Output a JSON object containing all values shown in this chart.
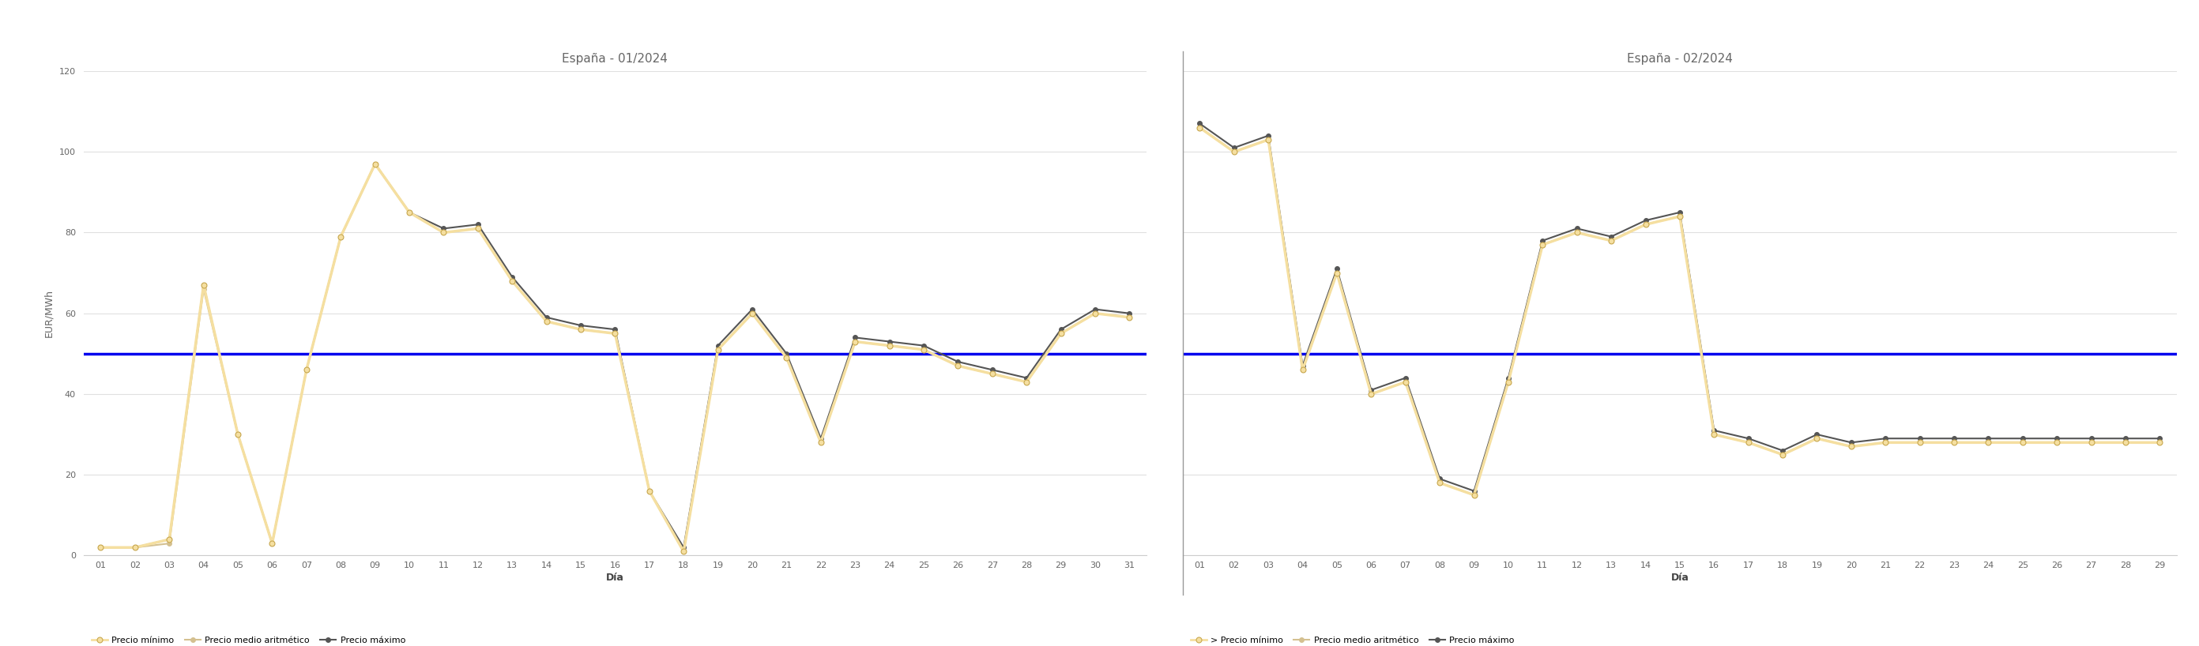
{
  "title1": "España - 01/2024",
  "title2": "España - 02/2024",
  "ylabel": "EUR/MWh",
  "xlabel": "Día",
  "ppa_value": 50,
  "ppa_color": "#0000ee",
  "ylim": [
    0,
    120
  ],
  "yticks": [
    0,
    20,
    40,
    60,
    80,
    100,
    120
  ],
  "days_jan": [
    "01",
    "02",
    "03",
    "04",
    "05",
    "06",
    "07",
    "08",
    "09",
    "10",
    "11",
    "12",
    "13",
    "14",
    "15",
    "16",
    "17",
    "18",
    "19",
    "20",
    "21",
    "22",
    "23",
    "24",
    "25",
    "26",
    "27",
    "28",
    "29",
    "30",
    "31"
  ],
  "days_feb": [
    "01",
    "02",
    "03",
    "04",
    "05",
    "06",
    "07",
    "08",
    "09",
    "10",
    "11",
    "12",
    "13",
    "14",
    "15",
    "16",
    "17",
    "18",
    "19",
    "20",
    "21",
    "22",
    "23",
    "24",
    "25",
    "26",
    "27",
    "28",
    "29"
  ],
  "jan_min": [
    2,
    2,
    4,
    67,
    30,
    3,
    46,
    79,
    97,
    85,
    80,
    81,
    68,
    58,
    56,
    55,
    16,
    1,
    51,
    60,
    49,
    28,
    53,
    52,
    51,
    47,
    45,
    43,
    55,
    60,
    59
  ],
  "jan_avg": [
    2,
    2,
    3,
    66,
    30,
    3,
    46,
    79,
    97,
    85,
    80,
    81,
    68,
    58,
    56,
    55,
    16,
    1,
    51,
    60,
    49,
    28,
    53,
    52,
    51,
    47,
    45,
    43,
    55,
    60,
    59
  ],
  "jan_max": [
    2,
    2,
    4,
    67,
    30,
    3,
    46,
    79,
    97,
    85,
    81,
    82,
    69,
    59,
    57,
    56,
    16,
    2,
    52,
    61,
    50,
    29,
    54,
    53,
    52,
    48,
    46,
    44,
    56,
    61,
    60
  ],
  "feb_min": [
    106,
    100,
    103,
    46,
    70,
    40,
    43,
    18,
    15,
    43,
    77,
    80,
    78,
    82,
    84,
    30,
    28,
    25,
    29,
    27,
    28,
    28,
    28,
    28,
    28,
    28,
    28,
    28,
    28
  ],
  "feb_avg": [
    106,
    100,
    103,
    46,
    70,
    40,
    43,
    18,
    15,
    43,
    77,
    80,
    78,
    82,
    84,
    30,
    28,
    25,
    29,
    27,
    28,
    28,
    28,
    28,
    28,
    28,
    28,
    28,
    28
  ],
  "feb_max": [
    107,
    101,
    104,
    47,
    71,
    41,
    44,
    19,
    16,
    44,
    78,
    81,
    79,
    83,
    85,
    31,
    29,
    26,
    30,
    28,
    29,
    29,
    29,
    29,
    29,
    29,
    29,
    29,
    29
  ],
  "color_min": "#f5dfa0",
  "color_min_edge": "#c8a850",
  "color_avg": "#d4c090",
  "color_max": "#555555",
  "linewidth_min": 2.5,
  "linewidth_avg": 1.5,
  "linewidth_max": 1.5,
  "markersize_min": 5,
  "markersize_avg": 4,
  "markersize_max": 4,
  "background_color": "#ffffff",
  "grid_color": "#e0e0e0",
  "title_fontsize": 11,
  "label_fontsize": 9,
  "tick_fontsize": 8,
  "legend_label_min": "Precio mínimo",
  "legend_label_avg": "Precio medio aritmético",
  "legend_label_max": "Precio máximo",
  "divider_color": "#999999",
  "ppa_linewidth": 2.5
}
